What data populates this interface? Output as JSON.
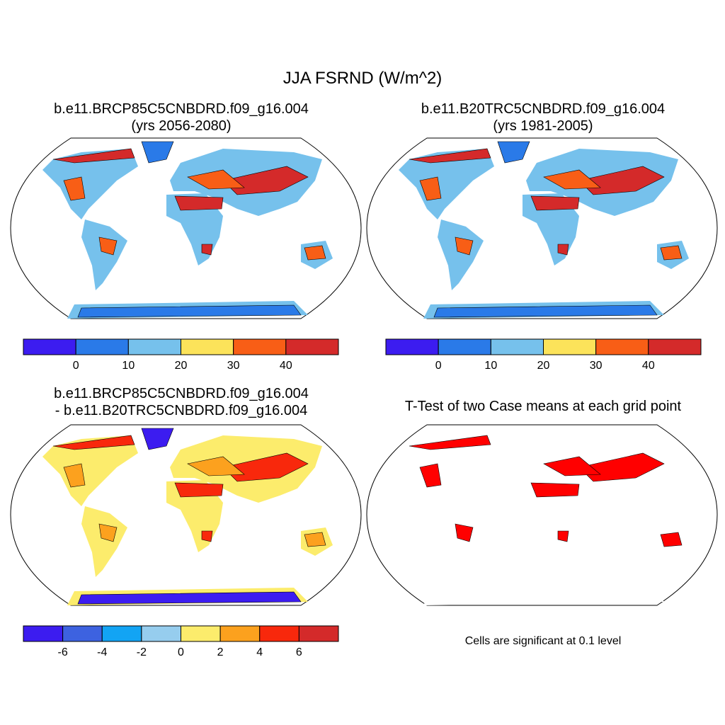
{
  "title": "JJA FSRND (W/m^2)",
  "panels": [
    {
      "title": [
        "b.e11.BRCP85C5CNBDRD.f09_g16.004",
        "(yrs 2056-2080)"
      ],
      "colorbar": {
        "colors": [
          "#3c1cf0",
          "#2a7ae8",
          "#76c1ec",
          "#fce35a",
          "#f85e16",
          "#d42a2a"
        ],
        "ticks": [
          0,
          10,
          20,
          30,
          40
        ]
      }
    },
    {
      "title": [
        "b.e11.B20TRC5CNBDRD.f09_g16.004",
        "(yrs 1981-2005)"
      ],
      "colorbar": {
        "colors": [
          "#3c1cf0",
          "#2a7ae8",
          "#76c1ec",
          "#fce35a",
          "#f85e16",
          "#d42a2a"
        ],
        "ticks": [
          0,
          10,
          20,
          30,
          40
        ]
      }
    },
    {
      "title": [
        "b.e11.BRCP85C5CNBDRD.f09_g16.004",
        "- b.e11.B20TRC5CNBDRD.f09_g16.004"
      ],
      "colorbar": {
        "colors": [
          "#3c1cf0",
          "#3d62e0",
          "#12a4f4",
          "#96cdee",
          "#fcec6c",
          "#fca11e",
          "#f8280c",
          "#d42a2a"
        ],
        "ticks": [
          -6,
          -4,
          -2,
          0,
          2,
          4,
          6
        ]
      }
    },
    {
      "title": [
        "T-Test of two Case means at each grid point"
      ],
      "note": "Cells are significant at 0.1 level"
    }
  ]
}
